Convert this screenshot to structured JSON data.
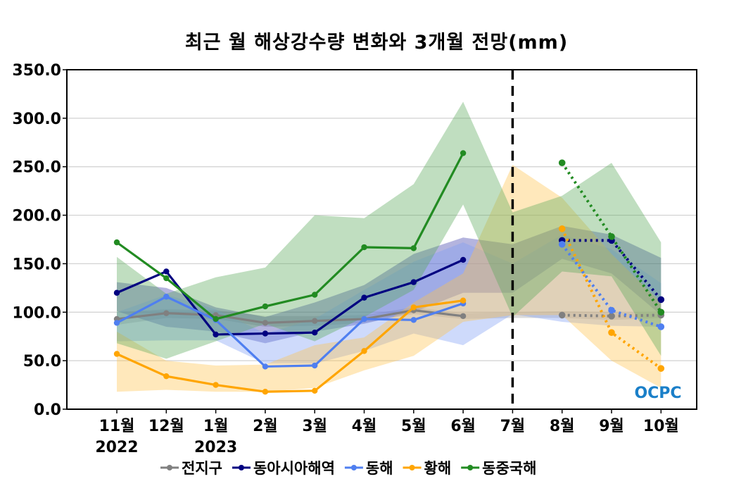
{
  "chart_data": {
    "type": "line",
    "title": "최근 월 해상강수량 변화와 3개월 전망(mm)",
    "xlabel": "",
    "ylabel": "",
    "ylim": [
      0,
      350
    ],
    "yticks": [
      "0.0",
      "50.0",
      "100.0",
      "150.0",
      "200.0",
      "250.0",
      "300.0",
      "350.0"
    ],
    "ytick_values": [
      0,
      50,
      100,
      150,
      200,
      250,
      300,
      350
    ],
    "grid": true,
    "categories": [
      "11월",
      "12월",
      "1월",
      "2월",
      "3월",
      "4월",
      "5월",
      "6월",
      "7월",
      "8월",
      "9월",
      "10월"
    ],
    "year_labels": [
      {
        "index": 0,
        "label": "2022"
      },
      {
        "index": 2,
        "label": "2023"
      }
    ],
    "divider_index": 8,
    "observed_indices": [
      0,
      1,
      2,
      3,
      4,
      5,
      6,
      7
    ],
    "forecast_indices": [
      9,
      10,
      11
    ],
    "legend_position": "bottom",
    "series": [
      {
        "name": "전지구",
        "color": "#808080",
        "observed": [
          93,
          99,
          97,
          89,
          91,
          93,
          102,
          96
        ],
        "forecast": [
          97,
          96,
          97
        ],
        "band_upper": [
          100,
          103,
          102,
          96,
          96,
          97,
          105,
          99,
          100,
          101,
          100,
          99
        ],
        "band_lower": [
          87,
          94,
          93,
          85,
          86,
          89,
          98,
          93,
          94,
          94,
          92,
          94
        ]
      },
      {
        "name": "동아시아해역",
        "color": "#000080",
        "observed": [
          120,
          142,
          77,
          78,
          79,
          115,
          131,
          154
        ],
        "forecast": [
          174,
          174,
          113
        ],
        "band_upper": [
          131,
          125,
          105,
          95,
          110,
          128,
          160,
          177,
          170,
          189,
          180,
          156
        ],
        "band_lower": [
          101,
          85,
          80,
          68,
          80,
          88,
          100,
          120,
          120,
          155,
          140,
          97
        ]
      },
      {
        "name": "동해",
        "color": "#4f7ff0",
        "observed": [
          89,
          116,
          92,
          44,
          45,
          93,
          92,
          109
        ],
        "forecast": [
          170,
          102,
          85
        ],
        "band_upper": [
          100,
          118,
          103,
          78,
          93,
          123,
          152,
          172,
          150,
          180,
          165,
          130
        ],
        "band_lower": [
          70,
          71,
          71,
          47,
          47,
          60,
          78,
          66,
          98,
          90,
          86,
          85
        ]
      },
      {
        "name": "황해",
        "color": "#ffa500",
        "observed": [
          57,
          34,
          25,
          18,
          19,
          60,
          105,
          112
        ],
        "forecast": [
          186,
          79,
          42
        ],
        "band_upper": [
          80,
          50,
          45,
          46,
          66,
          74,
          110,
          140,
          252,
          218,
          160,
          110
        ],
        "band_lower": [
          18,
          20,
          18,
          18,
          22,
          40,
          55,
          90,
          97,
          97,
          50,
          22
        ]
      },
      {
        "name": "동중국해",
        "color": "#228b22",
        "observed": [
          172,
          135,
          93,
          106,
          118,
          167,
          166,
          264
        ],
        "forecast": [
          254,
          178,
          100
        ],
        "band_upper": [
          157,
          119,
          136,
          146,
          200,
          197,
          232,
          317,
          203,
          220,
          254,
          172
        ],
        "band_lower": [
          68,
          52,
          70,
          88,
          70,
          95,
          123,
          211,
          95,
          142,
          137,
          55
        ]
      }
    ],
    "band_colors": {
      "전지구": "#a0a0a0",
      "동아시아해역": "#3a3aa8",
      "동해": "#7f9ff5",
      "황해": "#ffc24d",
      "동중국해": "#5aa85a"
    },
    "watermark": "OCPC"
  }
}
